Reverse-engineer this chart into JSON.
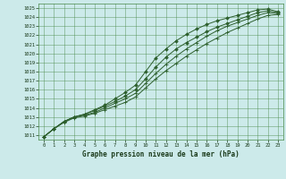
{
  "title": "Graphe pression niveau de la mer (hPa)",
  "bg_color": "#cceaea",
  "grid_color": "#4a8a4a",
  "line_color": "#2d5f2d",
  "marker_color": "#2d5f2d",
  "xlim": [
    -0.5,
    23.5
  ],
  "ylim": [
    1010.5,
    1025.5
  ],
  "yticks": [
    1011,
    1012,
    1013,
    1014,
    1015,
    1016,
    1017,
    1018,
    1019,
    1020,
    1021,
    1022,
    1023,
    1024,
    1025
  ],
  "xticks": [
    0,
    1,
    2,
    3,
    4,
    5,
    6,
    7,
    8,
    9,
    10,
    11,
    12,
    13,
    14,
    15,
    16,
    17,
    18,
    19,
    20,
    21,
    22,
    23
  ],
  "line1_x": [
    0,
    1,
    2,
    3,
    4,
    5,
    6,
    7,
    8,
    9,
    10,
    11,
    12,
    13,
    14,
    15,
    16,
    17,
    18,
    19,
    20,
    21,
    22,
    23
  ],
  "line1_y": [
    1010.8,
    1011.7,
    1012.5,
    1013.0,
    1013.3,
    1013.8,
    1014.3,
    1015.0,
    1015.7,
    1016.5,
    1018.0,
    1019.5,
    1020.5,
    1021.4,
    1022.1,
    1022.7,
    1023.2,
    1023.6,
    1023.9,
    1024.2,
    1024.5,
    1024.8,
    1024.9,
    1024.6
  ],
  "line2_x": [
    0,
    1,
    2,
    3,
    4,
    5,
    6,
    7,
    8,
    9,
    10,
    11,
    12,
    13,
    14,
    15,
    16,
    17,
    18,
    19,
    20,
    21,
    22,
    23
  ],
  "line2_y": [
    1010.8,
    1011.7,
    1012.5,
    1013.0,
    1013.3,
    1013.7,
    1014.2,
    1014.7,
    1015.3,
    1016.0,
    1017.2,
    1018.5,
    1019.6,
    1020.5,
    1021.2,
    1021.8,
    1022.4,
    1022.9,
    1023.3,
    1023.7,
    1024.1,
    1024.5,
    1024.7,
    1024.5
  ],
  "line3_x": [
    0,
    1,
    2,
    3,
    4,
    5,
    6,
    7,
    8,
    9,
    10,
    11,
    12,
    13,
    14,
    15,
    16,
    17,
    18,
    19,
    20,
    21,
    22,
    23
  ],
  "line3_y": [
    1010.8,
    1011.7,
    1012.5,
    1013.0,
    1013.2,
    1013.5,
    1014.0,
    1014.5,
    1015.0,
    1015.6,
    1016.7,
    1017.8,
    1018.8,
    1019.7,
    1020.5,
    1021.2,
    1021.9,
    1022.5,
    1023.0,
    1023.4,
    1023.8,
    1024.2,
    1024.5,
    1024.4
  ],
  "line4_x": [
    0,
    1,
    2,
    3,
    4,
    5,
    6,
    7,
    8,
    9,
    10,
    11,
    12,
    13,
    14,
    15,
    16,
    17,
    18,
    19,
    20,
    21,
    22,
    23
  ],
  "line4_y": [
    1010.8,
    1011.7,
    1012.4,
    1012.9,
    1013.1,
    1013.4,
    1013.8,
    1014.2,
    1014.6,
    1015.2,
    1016.2,
    1017.2,
    1018.1,
    1018.9,
    1019.7,
    1020.4,
    1021.1,
    1021.7,
    1022.3,
    1022.8,
    1023.3,
    1023.8,
    1024.2,
    1024.3
  ]
}
